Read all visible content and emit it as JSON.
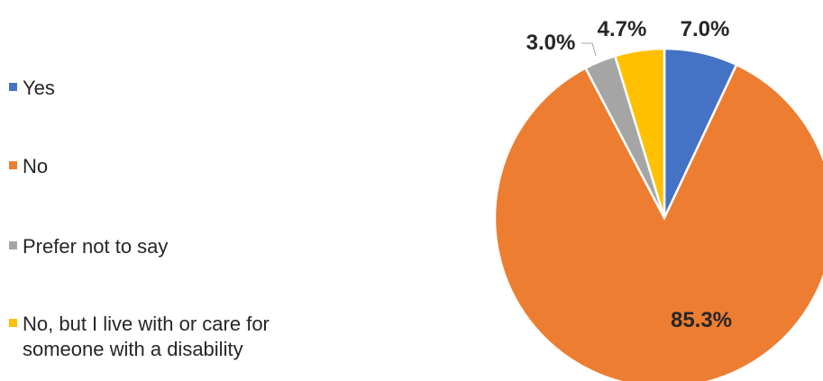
{
  "chart_data": {
    "type": "pie",
    "title": "",
    "legend_position": "left",
    "slices": [
      {
        "label": "Yes",
        "value": 7.0,
        "display": "7.0%",
        "color": "#4472C4"
      },
      {
        "label": "No",
        "value": 85.3,
        "display": "85.3%",
        "color": "#ED7D31"
      },
      {
        "label": "Prefer not to say",
        "value": 3.0,
        "display": "3.0%",
        "color": "#A5A5A5"
      },
      {
        "label": "No, but I live with or care for someone with a disability",
        "value": 4.7,
        "display": "4.7%",
        "color": "#FFC000"
      }
    ]
  }
}
